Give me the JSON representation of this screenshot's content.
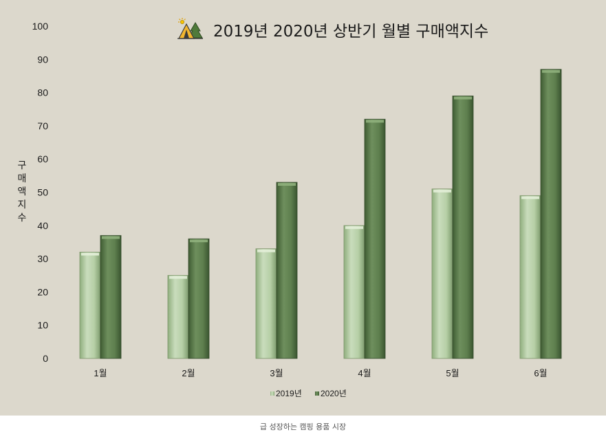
{
  "chart_data": {
    "type": "bar",
    "title": "2019년 2020년 상반기 월별 구매액지수",
    "ylabel": "구매액지수",
    "xlabel": "",
    "categories": [
      "1월",
      "2월",
      "3월",
      "4월",
      "5월",
      "6월"
    ],
    "series": [
      {
        "name": "2019년",
        "values": [
          32,
          25,
          33,
          40,
          51,
          49
        ],
        "color": "#b6cfa6"
      },
      {
        "name": "2020년",
        "values": [
          37,
          36,
          53,
          72,
          79,
          87
        ],
        "color": "#5e7f4e"
      }
    ],
    "ylim": [
      0,
      100
    ],
    "yticks": [
      0,
      10,
      20,
      30,
      40,
      50,
      60,
      70,
      80,
      90,
      100
    ],
    "grid": false,
    "legend": "bottom",
    "background": "#dcd8cc",
    "title_icon": "camping-tent-icon"
  },
  "caption": "급 성장하는 캠핑 용품 시장"
}
